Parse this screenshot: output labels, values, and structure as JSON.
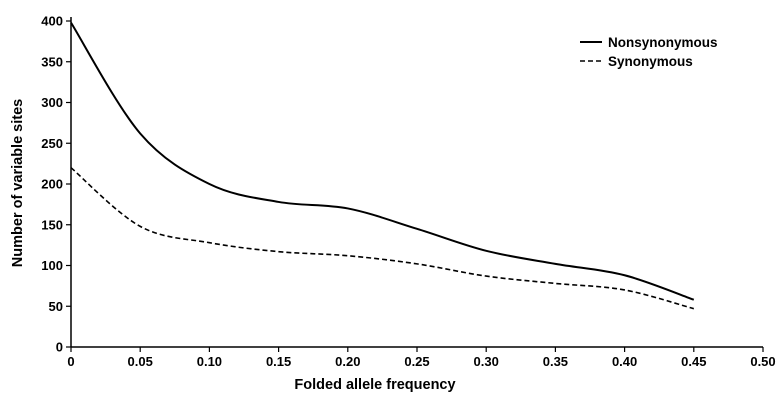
{
  "chart_data": {
    "type": "line",
    "title": "",
    "xlabel": "Folded allele frequency",
    "ylabel": "Number of variable sites",
    "xlim": [
      0,
      0.5
    ],
    "ylim": [
      0,
      400
    ],
    "x_ticks": [
      "0",
      "0.05",
      "0.10",
      "0.15",
      "0.20",
      "0.25",
      "0.30",
      "0.35",
      "0.40",
      "0.45",
      "0.50"
    ],
    "y_ticks": [
      "0",
      "50",
      "100",
      "150",
      "200",
      "250",
      "300",
      "350",
      "400"
    ],
    "x_tick_values": [
      0,
      0.05,
      0.1,
      0.15,
      0.2,
      0.25,
      0.3,
      0.35,
      0.4,
      0.45,
      0.5
    ],
    "y_tick_values": [
      0,
      50,
      100,
      150,
      200,
      250,
      300,
      350,
      400
    ],
    "grid": false,
    "legend_position": "top-right",
    "x": [
      0,
      0.05,
      0.1,
      0.15,
      0.2,
      0.25,
      0.3,
      0.35,
      0.4,
      0.45
    ],
    "series": [
      {
        "name": "Nonsynonymous",
        "style": "solid",
        "color": "#000000",
        "values": [
          398,
          262,
          200,
          178,
          170,
          145,
          118,
          102,
          88,
          58
        ]
      },
      {
        "name": "Synonymous",
        "style": "dashed",
        "color": "#000000",
        "values": [
          220,
          148,
          128,
          117,
          112,
          102,
          87,
          78,
          70,
          47
        ]
      }
    ]
  }
}
